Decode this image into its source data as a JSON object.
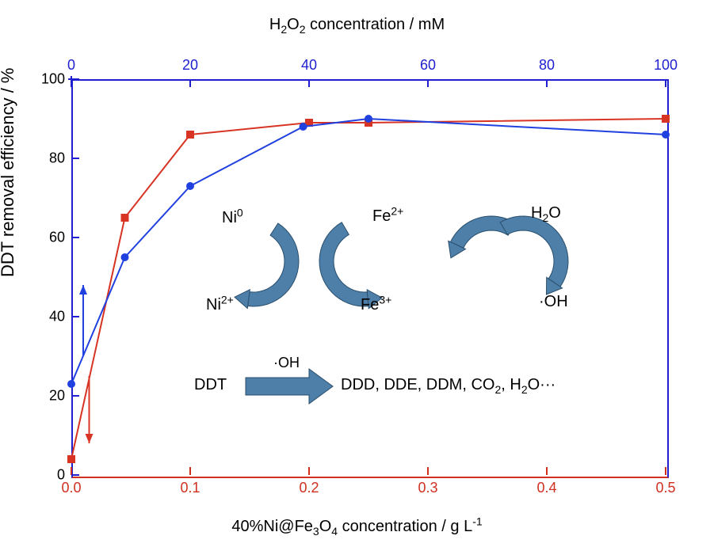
{
  "axes": {
    "top_title_html": "H<sub>2</sub>O<sub>2</sub> concentration / mM",
    "bottom_title_html": "40%Ni@Fe<sub>3</sub>O<sub>4</sub> concentration / g L<sup>-1</sup>",
    "y_title": "DDT removal efficiency / %",
    "y_ticks": [
      0,
      20,
      40,
      60,
      80,
      100
    ],
    "y_range": [
      0,
      100
    ],
    "top_ticks": [
      0,
      20,
      40,
      60,
      80,
      100
    ],
    "top_range": [
      0,
      100
    ],
    "bottom_ticks": [
      0.0,
      0.1,
      0.2,
      0.3,
      0.4,
      0.5
    ],
    "bottom_range": [
      0.0,
      0.5
    ],
    "top_color": "#2020d0",
    "bottom_color": "#d03020",
    "tick_len": 10,
    "axis_line_width": 2
  },
  "series": {
    "red": {
      "x_key": "bottom",
      "x": [
        0.0,
        0.045,
        0.1,
        0.2,
        0.25,
        0.5
      ],
      "y": [
        4,
        65,
        86,
        89,
        89,
        90
      ],
      "color": "#d83424",
      "marker": "square",
      "marker_size": 10,
      "line_width": 2
    },
    "blue": {
      "x_key": "top",
      "x": [
        0,
        9,
        20,
        39,
        50,
        100
      ],
      "y": [
        23,
        55,
        73,
        88,
        90,
        86
      ],
      "color": "#2040e0",
      "marker": "circle",
      "marker_size": 10,
      "line_width": 2
    }
  },
  "annotations": {
    "cycle_arrow_color": "#4d7fa8",
    "cycle_arrow_stroke": "#2a4f6e",
    "ni0_html": "Ni<sup>0</sup>",
    "ni2_html": "Ni<sup>2+</sup>",
    "fe2_html": "Fe<sup>2+</sup>",
    "fe3_html": "Fe<sup>3+</sup>",
    "h2o_html": "H<sub>2</sub>O",
    "oh_html": "·OH",
    "ddt": "DDT",
    "oh_small_html": "·OH",
    "products_html": "DDD, DDE, DDM, CO<sub>2</sub>, H<sub>2</sub>O···"
  }
}
